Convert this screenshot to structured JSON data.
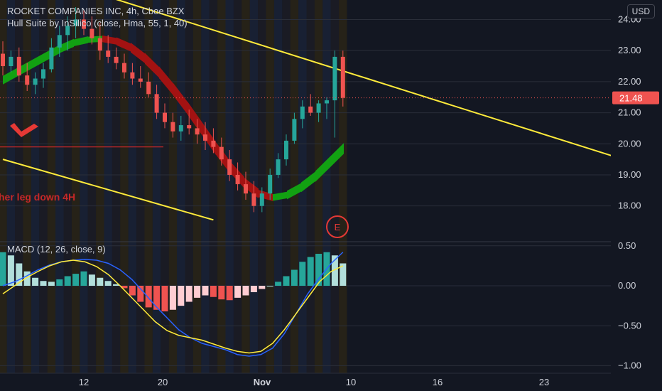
{
  "header": {
    "symbol_line": "ROCKET COMPANIES INC, 4h, Cboe BZX",
    "indicator_line": "Hull Suite by InSilico (close, Hma, 55, 1, 40)",
    "currency_button": "USD"
  },
  "macd": {
    "label": "MACD (12, 26, close, 9)"
  },
  "annotations": {
    "leg_text": "her leg down 4H",
    "earnings_marker": "E"
  },
  "colors": {
    "background": "#131722",
    "up_candle": "#26a69a",
    "down_candle": "#ef5350",
    "hull_up": "#12a112",
    "hull_down": "#a31212",
    "trendline": "#ffeb3b",
    "macd_line": "#2962ff",
    "signal_line": "#ffeb3b",
    "price_line": "#ef5350"
  },
  "chart_data": [
    {
      "type": "candlestick",
      "title": "ROCKET COMPANIES INC, 4h, Cboe BZX",
      "y_ticks": [
        "24.00",
        "23.00",
        "22.00",
        "21.00",
        "20.00",
        "19.00",
        "18.00"
      ],
      "ylim": [
        17.25,
        24.4
      ],
      "x_ticks": [
        "12",
        "20",
        "Nov",
        "10",
        "16",
        "23"
      ],
      "last_price": 21.48,
      "last_price_label": "21.48",
      "candles": [
        [
          22.9,
          23.3,
          22.2,
          22.5
        ],
        [
          22.5,
          23.0,
          22.3,
          22.8
        ],
        [
          22.8,
          23.1,
          22.0,
          22.2
        ],
        [
          22.2,
          22.6,
          21.7,
          21.9
        ],
        [
          21.9,
          22.3,
          21.6,
          22.1
        ],
        [
          22.1,
          22.6,
          21.8,
          22.4
        ],
        [
          22.4,
          23.4,
          22.3,
          23.1
        ],
        [
          23.1,
          23.8,
          22.8,
          23.5
        ],
        [
          23.5,
          24.1,
          23.0,
          23.8
        ],
        [
          23.8,
          24.4,
          23.4,
          24.0
        ],
        [
          24.0,
          24.3,
          23.5,
          23.7
        ],
        [
          23.7,
          24.1,
          23.2,
          23.4
        ],
        [
          23.4,
          23.9,
          22.7,
          23.0
        ],
        [
          23.0,
          23.5,
          22.6,
          22.8
        ],
        [
          22.8,
          23.1,
          22.4,
          22.6
        ],
        [
          22.6,
          22.9,
          22.1,
          22.3
        ],
        [
          22.3,
          22.6,
          21.9,
          22.1
        ],
        [
          22.1,
          22.5,
          21.8,
          22.0
        ],
        [
          22.0,
          22.3,
          21.5,
          21.6
        ],
        [
          21.6,
          21.9,
          20.8,
          21.0
        ],
        [
          21.0,
          21.3,
          20.5,
          20.7
        ],
        [
          20.7,
          21.0,
          20.2,
          20.4
        ],
        [
          20.4,
          20.9,
          20.1,
          20.6
        ],
        [
          20.6,
          21.1,
          20.3,
          20.5
        ],
        [
          20.5,
          20.8,
          20.0,
          20.3
        ],
        [
          20.3,
          20.7,
          19.8,
          20.1
        ],
        [
          20.1,
          20.5,
          19.7,
          19.9
        ],
        [
          19.9,
          20.2,
          19.3,
          19.5
        ],
        [
          19.5,
          19.8,
          18.8,
          19.0
        ],
        [
          19.0,
          19.4,
          18.5,
          18.7
        ],
        [
          18.7,
          19.1,
          18.2,
          18.4
        ],
        [
          18.4,
          18.8,
          17.8,
          18.0
        ],
        [
          18.0,
          18.6,
          17.8,
          18.4
        ],
        [
          18.4,
          19.2,
          18.2,
          19.0
        ],
        [
          19.0,
          19.7,
          18.9,
          19.5
        ],
        [
          19.5,
          20.3,
          19.3,
          20.1
        ],
        [
          20.1,
          21.0,
          20.0,
          20.8
        ],
        [
          20.8,
          21.4,
          20.5,
          21.2
        ],
        [
          21.2,
          21.6,
          20.9,
          21.0
        ],
        [
          21.0,
          21.4,
          20.7,
          21.3
        ],
        [
          21.3,
          21.5,
          20.8,
          21.4
        ],
        [
          21.4,
          23.0,
          20.2,
          22.8
        ],
        [
          22.8,
          23.0,
          21.2,
          21.48
        ]
      ],
      "trendlines": [
        {
          "name": "upper-resistance",
          "from": [
            0,
            25.8
          ],
          "to": [
            76,
            19.55
          ]
        },
        {
          "name": "lower-channel",
          "from": [
            0,
            19.5
          ],
          "to": [
            26,
            17.55
          ]
        }
      ],
      "hull_ma": [
        22.05,
        22.3,
        22.55,
        22.8,
        23.05,
        23.25,
        23.35,
        23.38,
        23.3,
        23.1,
        22.75,
        22.3,
        21.75,
        21.15,
        20.5,
        19.85,
        19.25,
        18.75,
        18.4,
        18.27,
        18.35,
        18.6,
        18.95,
        19.4,
        19.85
      ]
    },
    {
      "type": "macd",
      "title": "MACD (12, 26, close, 9)",
      "y_ticks": [
        "0.50",
        "0.00",
        "−0.50",
        "−1.00"
      ],
      "ylim": [
        -1.05,
        0.6
      ],
      "histogram": [
        0.42,
        0.38,
        0.28,
        0.18,
        0.1,
        0.06,
        0.05,
        0.08,
        0.12,
        0.15,
        0.18,
        0.14,
        0.1,
        0.06,
        0.02,
        -0.03,
        -0.12,
        -0.2,
        -0.27,
        -0.3,
        -0.32,
        -0.3,
        -0.25,
        -0.2,
        -0.15,
        -0.12,
        -0.14,
        -0.17,
        -0.18,
        -0.15,
        -0.12,
        -0.08,
        -0.04,
        0.0,
        0.05,
        0.12,
        0.2,
        0.3,
        0.36,
        0.4,
        0.42,
        0.38,
        0.28
      ],
      "macd_line": [
        0.0,
        0.05,
        0.12,
        0.2,
        0.26,
        0.3,
        0.32,
        0.33,
        0.32,
        0.28,
        0.2,
        0.08,
        -0.08,
        -0.25,
        -0.4,
        -0.55,
        -0.65,
        -0.72,
        -0.76,
        -0.8,
        -0.86,
        -0.88,
        -0.86,
        -0.78,
        -0.6,
        -0.35,
        -0.1,
        0.1,
        0.28,
        0.42
      ],
      "signal_line": [
        -0.1,
        0.0,
        0.1,
        0.18,
        0.25,
        0.3,
        0.32,
        0.3,
        0.24,
        0.14,
        0.0,
        -0.15,
        -0.3,
        -0.45,
        -0.56,
        -0.62,
        -0.65,
        -0.68,
        -0.73,
        -0.78,
        -0.82,
        -0.84,
        -0.82,
        -0.72,
        -0.55,
        -0.35,
        -0.15,
        0.05,
        0.18,
        0.25
      ]
    }
  ]
}
